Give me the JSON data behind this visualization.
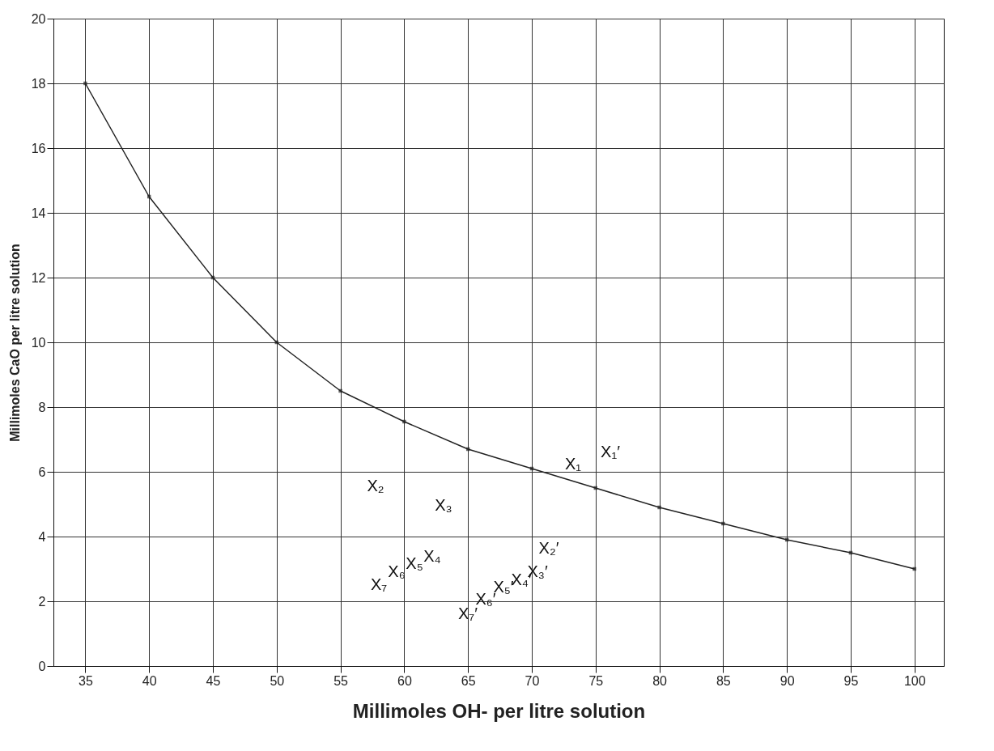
{
  "chart_data": {
    "type": "line",
    "xlabel": "Millimoles OH- per litre solution",
    "ylabel": "Millimoles CaO per litre solution",
    "x": [
      35,
      40,
      45,
      50,
      55,
      60,
      65,
      70,
      75,
      80,
      85,
      90,
      95,
      100
    ],
    "series": [
      {
        "color": "#222222",
        "values": [
          18,
          14.5,
          12,
          10,
          8.5,
          7.55,
          6.7,
          6.1,
          5.5,
          4.9,
          4.4,
          3.9,
          3.5,
          3.0
        ]
      }
    ],
    "xlim": [
      32.5,
      102.3
    ],
    "xticks": [
      35,
      40,
      45,
      50,
      55,
      60,
      65,
      70,
      75,
      80,
      85,
      90,
      95,
      100
    ],
    "ylim": [
      0,
      20
    ],
    "yticks": [
      0,
      2,
      4,
      6,
      8,
      10,
      12,
      14,
      16,
      18,
      20
    ],
    "grid": true,
    "marker": "square",
    "line_style": "solid",
    "annotations": [
      "X₁",
      "X₁′",
      "X₂",
      "X₃",
      "X₄",
      "X₅",
      "X₆",
      "X₇",
      "X₂′",
      "X₃′",
      "X₄′",
      "X₅′",
      "X₆′",
      "X₇′"
    ]
  }
}
